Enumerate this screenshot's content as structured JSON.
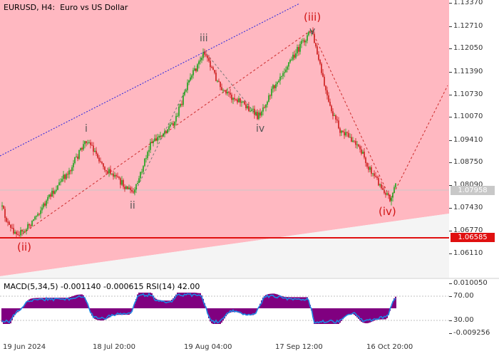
{
  "chart": {
    "symbol_label": "EURUSD, H4:  Euro vs US Dollar",
    "price_ticks": [
      "1.13370",
      "1.12710",
      "1.12050",
      "1.11390",
      "1.10730",
      "1.10070",
      "1.09410",
      "1.08750",
      "1.08090",
      "1.07430",
      "1.06770",
      "1.06110"
    ],
    "current_price": "1.07958",
    "support_price": "1.06585",
    "time_ticks": [
      "19 Jun 2024",
      "18 Jul 20:00",
      "19 Aug 04:00",
      "17 Sep 12:00",
      "16 Oct 20:00"
    ],
    "wave_labels": {
      "i": "i",
      "ii": "ii",
      "iii": "iii",
      "iv": "iv",
      "v": "v",
      "big_ii": "(ii)",
      "big_iii": "(iii)",
      "big_iv": "(iv)"
    },
    "colors": {
      "channel_fill": "#ffb8c1",
      "bull_candle": "#19a319",
      "bear_candle": "#cc1a1a",
      "support_line": "#e01010",
      "upper_channel": "#2323e0",
      "wave_lines": "#cc2a2a",
      "macd_hist": "#800080",
      "macd_line": "#1e88e5"
    }
  },
  "indicator": {
    "label": "MACD(5,34,5) -0.001140 -0.000615 RSI(14) 42.00",
    "ticks": [
      "0.010050",
      "70.00",
      "30.00",
      "-0.009256"
    ]
  }
}
